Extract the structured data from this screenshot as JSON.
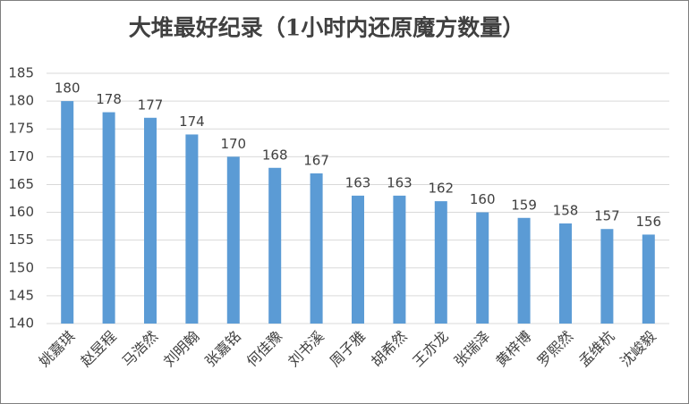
{
  "chart_data": {
    "type": "bar",
    "title": "大堆最好纪录（1小时内还原魔方数量）",
    "categories": [
      "姚嘉琪",
      "赵昱程",
      "马浩然",
      "刘明翰",
      "张嘉铭",
      "何佳豫",
      "刘书溪",
      "周子雅",
      "胡希然",
      "王亦龙",
      "张瑞泽",
      "黄梓博",
      "罗熙然",
      "孟维杭",
      "沈峻毅"
    ],
    "values": [
      180,
      178,
      177,
      174,
      170,
      168,
      167,
      163,
      163,
      162,
      160,
      159,
      158,
      157,
      156
    ],
    "color": "#5b9bd5",
    "ylim": [
      140,
      185
    ],
    "yticks": [
      140,
      145,
      150,
      155,
      160,
      165,
      170,
      175,
      180,
      185
    ],
    "grid": true
  }
}
